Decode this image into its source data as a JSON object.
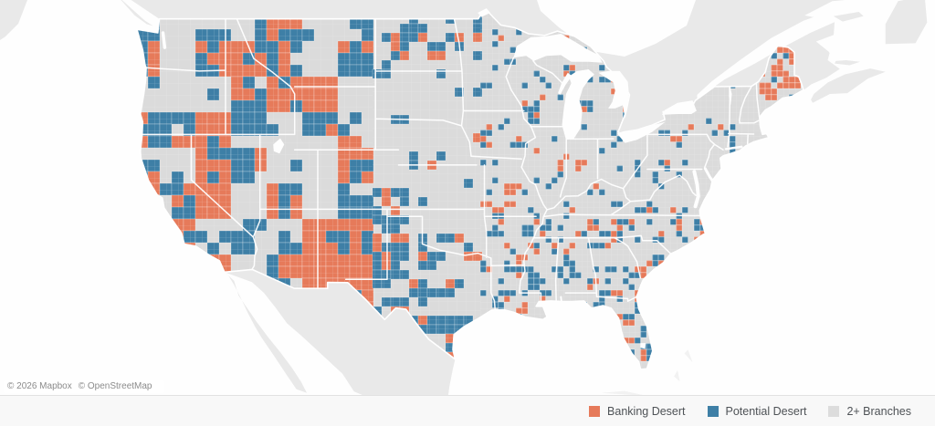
{
  "legend": {
    "items": [
      {
        "label": "Banking Desert",
        "color": "#E67A5A",
        "icon": "square-swatch"
      },
      {
        "label": "Potential Desert",
        "color": "#3E7FA6",
        "icon": "square-swatch"
      },
      {
        "label": "2+ Branches",
        "color": "#DCDCDC",
        "icon": "square-swatch"
      }
    ]
  },
  "attribution": {
    "mapbox": "© 2026 Mapbox",
    "osm": "© OpenStreetMap"
  },
  "colors": {
    "water": "#FEFEFE",
    "foreign_land": "#E9E9E9",
    "us_land": "#DBDBDB",
    "state_border": "#FFFFFF",
    "legend_bar_bg": "#F8F8F8",
    "legend_text": "#4E5256",
    "attribution_text": "#8B8B8B"
  },
  "chart_data": {
    "type": "choropleth",
    "geography": "United States counties (contiguous US)",
    "title": "",
    "categories": [
      "Banking Desert",
      "Potential Desert",
      "2+ Branches"
    ],
    "category_colors": [
      "#E67A5A",
      "#3E7FA6",
      "#DCDCDC"
    ],
    "basemap": "light gray (Mapbox / OpenStreetMap)",
    "legend_position": "bottom-right",
    "regional_pattern_notes": [
      "Mountain West / Southwest: dense large orange (Banking Desert) and blue (Potential Desert) counties",
      "Great Plains (NE/KS): mostly gray with scattered blue/orange blocks",
      "Midwest & East: small counties, mostly gray with fine orange/blue speckle",
      "South (MS valley, Carolinas, GA): denser orange speckle",
      "Maine: large orange counties; west Texas: large blue patches"
    ]
  }
}
